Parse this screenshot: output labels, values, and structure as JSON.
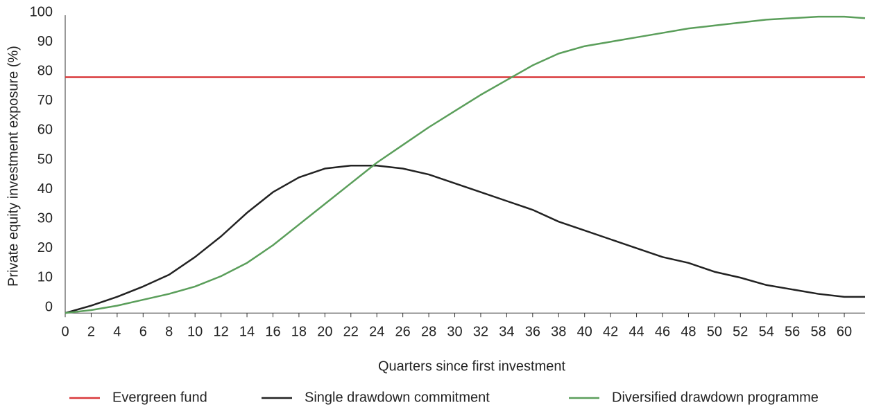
{
  "chart_data": {
    "type": "line",
    "xlabel": "Quarters since first investment",
    "ylabel": "Private equity investment exposure (%)",
    "x": [
      0,
      2,
      4,
      6,
      8,
      10,
      12,
      14,
      16,
      18,
      20,
      22,
      24,
      26,
      28,
      30,
      32,
      34,
      36,
      38,
      40,
      42,
      44,
      46,
      48,
      50,
      52,
      54,
      56,
      58,
      60,
      61.6
    ],
    "series": [
      {
        "name": "Evergreen fund",
        "color": "#d9383a",
        "values": [
          79,
          79,
          79,
          79,
          79,
          79,
          79,
          79,
          79,
          79,
          79,
          79,
          79,
          79,
          79,
          79,
          79,
          79,
          79,
          79,
          79,
          79,
          79,
          79,
          79,
          79,
          79,
          79,
          79,
          79,
          79,
          79
        ]
      },
      {
        "name": "Single drawdown commitment",
        "color": "#222222",
        "values": [
          -1,
          1.5,
          4.5,
          8,
          12,
          18,
          25,
          33,
          40,
          45,
          48,
          49,
          49,
          48,
          46,
          43,
          40,
          37,
          34,
          30,
          27,
          24,
          21,
          18,
          16,
          13,
          11,
          8.5,
          7,
          5.5,
          4.5,
          4.5
        ]
      },
      {
        "name": "Diversified drawdown programme",
        "color": "#5a9e5a",
        "values": [
          -1,
          0,
          1.5,
          3.5,
          5.5,
          8,
          11.5,
          16,
          22,
          29,
          36,
          43,
          50,
          56,
          62,
          67.5,
          73,
          78,
          83,
          87,
          89.5,
          91,
          92.5,
          94,
          95.5,
          96.5,
          97.5,
          98.5,
          99,
          99.5,
          99.5,
          99
        ]
      }
    ],
    "xlim": [
      0,
      61.6
    ],
    "ylim": [
      -1,
      100
    ],
    "xticks": [
      0,
      2,
      4,
      6,
      8,
      10,
      12,
      14,
      16,
      18,
      20,
      22,
      24,
      26,
      28,
      30,
      32,
      34,
      36,
      38,
      40,
      42,
      44,
      46,
      48,
      50,
      52,
      54,
      56,
      58,
      60
    ],
    "yticks": [
      0,
      10,
      20,
      30,
      40,
      50,
      60,
      70,
      80,
      90,
      100
    ],
    "grid": false,
    "legend": "bottom"
  }
}
